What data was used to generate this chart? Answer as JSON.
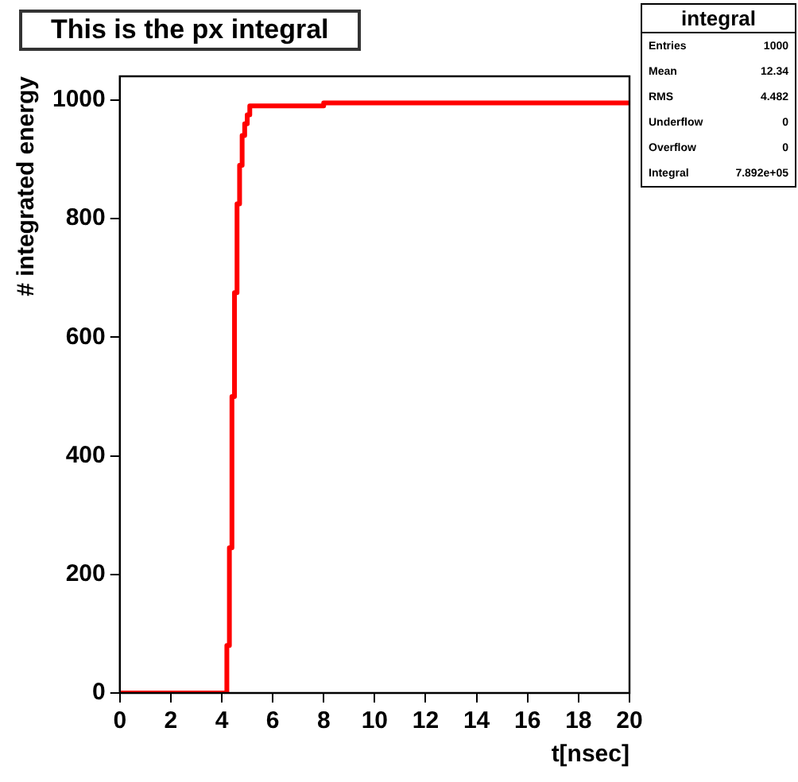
{
  "chart_data": {
    "type": "step",
    "title": "This is the px integral",
    "xlabel": "t[nsec]",
    "ylabel": "# integrated energy",
    "x": [
      0,
      4.2,
      4.3,
      4.4,
      4.5,
      4.6,
      4.7,
      4.8,
      4.9,
      5.0,
      5.1,
      8.0,
      20
    ],
    "series": [
      {
        "color": "#ff0000",
        "values": [
          0,
          80,
          245,
          500,
          675,
          825,
          890,
          940,
          960,
          975,
          990,
          995,
          995
        ]
      }
    ],
    "xlim": [
      0,
      20
    ],
    "xticks": [
      0,
      2,
      4,
      6,
      8,
      10,
      12,
      14,
      16,
      18,
      20
    ],
    "ylim": [
      0,
      1040
    ],
    "yticks": [
      0,
      200,
      400,
      600,
      800,
      1000
    ],
    "grid": false,
    "legend": false,
    "marker": "none",
    "line_style": "solid",
    "annotations": [
      "integral",
      "Entries",
      "1000",
      "Mean",
      "12.34",
      "RMS",
      "4.482",
      "Underflow",
      "0",
      "Overflow",
      "0",
      "Integral",
      "7.892e+05"
    ]
  }
}
